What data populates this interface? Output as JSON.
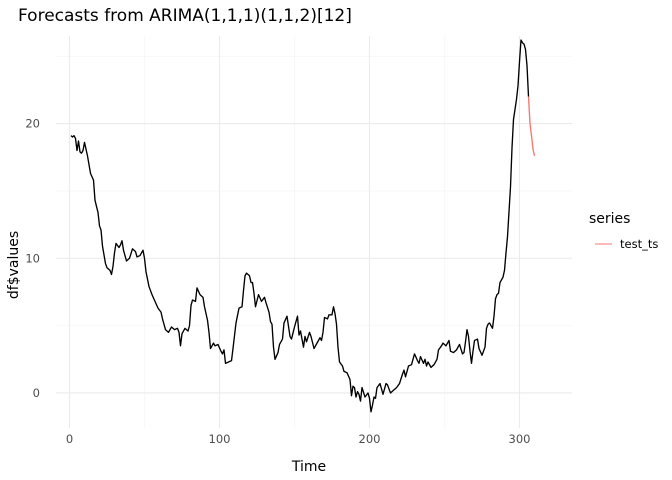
{
  "chart_data": {
    "type": "line",
    "title": "Forecasts from ARIMA(1,1,1)(1,1,2)[12]",
    "xlabel": "Time",
    "ylabel": "df$values",
    "xlim": [
      -9,
      335
    ],
    "ylim": [
      -2.6,
      26.5
    ],
    "x_ticks": [
      0,
      100,
      200,
      300
    ],
    "y_ticks": [
      0,
      10,
      20
    ],
    "grid": true,
    "legend": {
      "title": "series",
      "position": "right",
      "entries": [
        {
          "name": "test_ts",
          "color": "#F8766D"
        }
      ]
    },
    "series": [
      {
        "name": "",
        "color": "#000000",
        "points": [
          [
            1,
            19.1
          ],
          [
            2,
            19.0
          ],
          [
            3,
            19.1
          ],
          [
            4,
            18.9
          ],
          [
            5,
            18.0
          ],
          [
            6,
            18.7
          ],
          [
            7,
            17.9
          ],
          [
            8,
            17.8
          ],
          [
            9,
            18.0
          ],
          [
            10,
            18.6
          ],
          [
            12,
            17.6
          ],
          [
            14,
            16.3
          ],
          [
            16,
            15.8
          ],
          [
            17,
            14.3
          ],
          [
            19,
            13.4
          ],
          [
            20,
            12.4
          ],
          [
            21,
            12.1
          ],
          [
            22,
            10.9
          ],
          [
            24,
            9.6
          ],
          [
            25,
            9.3
          ],
          [
            27,
            9.1
          ],
          [
            28,
            8.8
          ],
          [
            29,
            9.4
          ],
          [
            30,
            10.4
          ],
          [
            31,
            11.1
          ],
          [
            33,
            10.8
          ],
          [
            34,
            11.0
          ],
          [
            35,
            11.3
          ],
          [
            36,
            10.6
          ],
          [
            38,
            9.8
          ],
          [
            40,
            10.0
          ],
          [
            42,
            10.7
          ],
          [
            44,
            10.5
          ],
          [
            45,
            10.1
          ],
          [
            47,
            10.2
          ],
          [
            49,
            10.6
          ],
          [
            50,
            10.0
          ],
          [
            51,
            9.0
          ],
          [
            53,
            7.9
          ],
          [
            55,
            7.3
          ],
          [
            57,
            6.8
          ],
          [
            59,
            6.3
          ],
          [
            61,
            6.0
          ],
          [
            62,
            5.5
          ],
          [
            64,
            4.7
          ],
          [
            66,
            4.5
          ],
          [
            68,
            4.9
          ],
          [
            70,
            4.7
          ],
          [
            72,
            4.8
          ],
          [
            73,
            4.5
          ],
          [
            74,
            3.5
          ],
          [
            75,
            4.4
          ],
          [
            77,
            4.8
          ],
          [
            79,
            4.6
          ],
          [
            80,
            5.0
          ],
          [
            81,
            6.5
          ],
          [
            82,
            6.9
          ],
          [
            84,
            6.8
          ],
          [
            85,
            7.8
          ],
          [
            87,
            7.3
          ],
          [
            89,
            7.1
          ],
          [
            90,
            6.4
          ],
          [
            92,
            5.4
          ],
          [
            93,
            4.5
          ],
          [
            94,
            3.3
          ],
          [
            96,
            3.7
          ],
          [
            97,
            3.5
          ],
          [
            99,
            3.6
          ],
          [
            101,
            3.1
          ],
          [
            102,
            2.9
          ],
          [
            103,
            3.2
          ],
          [
            104,
            2.2
          ],
          [
            106,
            2.3
          ],
          [
            108,
            2.4
          ],
          [
            109,
            3.3
          ],
          [
            111,
            5.2
          ],
          [
            113,
            6.3
          ],
          [
            115,
            6.4
          ],
          [
            116,
            7.6
          ],
          [
            117,
            8.7
          ],
          [
            118,
            8.9
          ],
          [
            120,
            8.7
          ],
          [
            121,
            8.2
          ],
          [
            122,
            8.2
          ],
          [
            123,
            7.4
          ],
          [
            124,
            6.4
          ],
          [
            126,
            7.3
          ],
          [
            128,
            6.8
          ],
          [
            130,
            7.1
          ],
          [
            131,
            6.7
          ],
          [
            133,
            6.0
          ],
          [
            134,
            5.3
          ],
          [
            135,
            5.1
          ],
          [
            136,
            3.4
          ],
          [
            137,
            2.5
          ],
          [
            139,
            3.0
          ],
          [
            140,
            3.6
          ],
          [
            142,
            4.0
          ],
          [
            143,
            5.2
          ],
          [
            145,
            5.7
          ],
          [
            147,
            4.2
          ],
          [
            148,
            4.0
          ],
          [
            150,
            4.9
          ],
          [
            152,
            5.7
          ],
          [
            153,
            4.3
          ],
          [
            154,
            4.6
          ],
          [
            156,
            3.4
          ],
          [
            157,
            4.2
          ],
          [
            158,
            3.8
          ],
          [
            160,
            4.5
          ],
          [
            161,
            4.2
          ],
          [
            163,
            3.3
          ],
          [
            165,
            3.7
          ],
          [
            167,
            4.1
          ],
          [
            168,
            3.9
          ],
          [
            169,
            4.5
          ],
          [
            170,
            5.6
          ],
          [
            172,
            5.5
          ],
          [
            173,
            5.8
          ],
          [
            175,
            5.8
          ],
          [
            176,
            6.4
          ],
          [
            177,
            5.9
          ],
          [
            178,
            5.1
          ],
          [
            179,
            3.4
          ],
          [
            180,
            2.3
          ],
          [
            182,
            2.0
          ],
          [
            183,
            1.6
          ],
          [
            185,
            1.5
          ],
          [
            187,
            1.0
          ],
          [
            188,
            -0.2
          ],
          [
            189,
            0.5
          ],
          [
            190,
            0.4
          ],
          [
            191,
            -0.3
          ],
          [
            192,
            0.1
          ],
          [
            193,
            -0.1
          ],
          [
            194,
            -0.6
          ],
          [
            195,
            0.4
          ],
          [
            197,
            -0.3
          ],
          [
            199,
            0.0
          ],
          [
            200,
            -0.4
          ],
          [
            201,
            -1.4
          ],
          [
            202,
            -0.9
          ],
          [
            203,
            -0.3
          ],
          [
            204,
            -0.4
          ],
          [
            205,
            0.4
          ],
          [
            207,
            0.7
          ],
          [
            208,
            0.3
          ],
          [
            209,
            -0.1
          ],
          [
            211,
            0.7
          ],
          [
            212,
            0.6
          ],
          [
            213,
            0.3
          ],
          [
            214,
            0.0
          ],
          [
            216,
            0.2
          ],
          [
            218,
            0.4
          ],
          [
            220,
            0.7
          ],
          [
            222,
            1.4
          ],
          [
            223,
            1.7
          ],
          [
            224,
            1.2
          ],
          [
            226,
            2.0
          ],
          [
            228,
            2.1
          ],
          [
            230,
            2.9
          ],
          [
            232,
            2.4
          ],
          [
            233,
            2.2
          ],
          [
            234,
            2.7
          ],
          [
            236,
            2.2
          ],
          [
            237,
            2.5
          ],
          [
            238,
            2.0
          ],
          [
            239,
            2.3
          ],
          [
            241,
            1.9
          ],
          [
            243,
            2.1
          ],
          [
            245,
            2.5
          ],
          [
            246,
            3.2
          ],
          [
            248,
            3.5
          ],
          [
            249,
            3.7
          ],
          [
            251,
            3.5
          ],
          [
            253,
            3.9
          ],
          [
            254,
            3.1
          ],
          [
            256,
            3.0
          ],
          [
            258,
            3.2
          ],
          [
            260,
            3.6
          ],
          [
            262,
            2.9
          ],
          [
            263,
            3.0
          ],
          [
            264,
            3.8
          ],
          [
            265,
            4.7
          ],
          [
            266,
            4.2
          ],
          [
            267,
            3.1
          ],
          [
            268,
            2.2
          ],
          [
            269,
            3.1
          ],
          [
            270,
            3.9
          ],
          [
            272,
            4.0
          ],
          [
            273,
            3.3
          ],
          [
            275,
            2.8
          ],
          [
            277,
            3.4
          ],
          [
            278,
            4.8
          ],
          [
            279,
            5.1
          ],
          [
            280,
            5.2
          ],
          [
            282,
            4.8
          ],
          [
            283,
            5.7
          ],
          [
            284,
            7.0
          ],
          [
            285,
            7.3
          ],
          [
            286,
            7.4
          ],
          [
            287,
            8.2
          ],
          [
            289,
            8.6
          ],
          [
            290,
            9.1
          ],
          [
            291,
            10.4
          ],
          [
            292,
            11.6
          ],
          [
            294,
            15.3
          ],
          [
            295,
            18.2
          ],
          [
            296,
            20.3
          ],
          [
            298,
            21.8
          ],
          [
            299,
            22.8
          ],
          [
            300,
            24.6
          ],
          [
            301,
            26.2
          ],
          [
            302,
            26.0
          ],
          [
            303,
            25.9
          ],
          [
            304,
            25.5
          ],
          [
            305,
            24.3
          ],
          [
            306,
            22.0
          ]
        ]
      },
      {
        "name": "test_ts",
        "color": "#F8766D",
        "points": [
          [
            306,
            22.0
          ],
          [
            307,
            20.0
          ],
          [
            308,
            19.1
          ],
          [
            309,
            18.1
          ],
          [
            310,
            17.6
          ]
        ]
      }
    ]
  }
}
